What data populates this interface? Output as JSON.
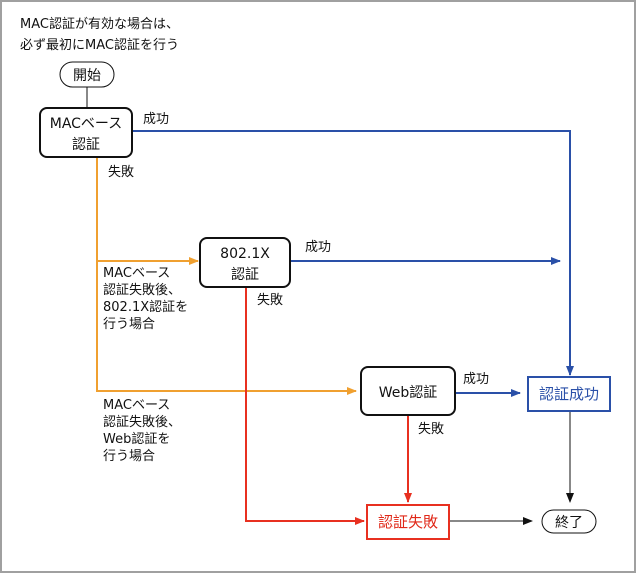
{
  "note": [
    "MAC認証が有効な場合は、",
    "必ず最初にMAC認証を行う"
  ],
  "nodes": {
    "start": "開始",
    "mac_auth": [
      "MACベース",
      "認証"
    ],
    "dot1x_auth": [
      "802.1X",
      "認証"
    ],
    "web_auth": "Web認証",
    "auth_success": "認証成功",
    "auth_failure": "認証失敗",
    "end": "終了"
  },
  "edge_labels": {
    "success": "成功",
    "failure": "失敗"
  },
  "conditions": {
    "dot1x": [
      "MACベース",
      "認証失敗後、",
      "802.1X認証を",
      "行う場合"
    ],
    "web": [
      "MACベース",
      "認証失敗後、",
      "Web認証を",
      "行う場合"
    ]
  },
  "colors": {
    "success": "#2a50a8",
    "failure_mac": "#f0a030",
    "failure": "#e83020",
    "frame": "#a0a0a0"
  }
}
